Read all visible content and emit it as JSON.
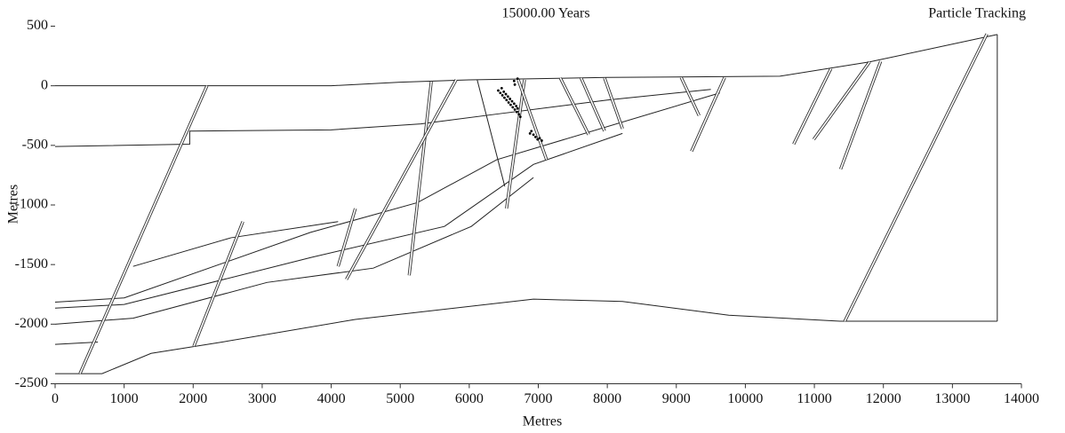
{
  "chart_data": {
    "type": "line",
    "title": "15000.00 Years",
    "annotation": "Particle Tracking",
    "x_label": "Metres",
    "y_label": "Metres",
    "xlim": [
      0,
      14000
    ],
    "ylim": [
      -2500,
      500
    ],
    "xticks": [
      0,
      1000,
      2000,
      3000,
      4000,
      5000,
      6000,
      7000,
      8000,
      9000,
      10000,
      11000,
      12000,
      13000,
      14000
    ],
    "yticks": [
      500,
      0,
      -500,
      -1000,
      -1500,
      -2000,
      -2500
    ],
    "grid": false,
    "series": [
      {
        "style": "layer",
        "color": "#222222",
        "x": [
          0,
          4000,
          5000,
          6000,
          8000,
          10500,
          11800,
          13650
        ],
        "values": [
          0,
          0,
          30,
          50,
          70,
          80,
          200,
          430
        ]
      },
      {
        "style": "layer",
        "color": "#222222",
        "x": [
          13650,
          13650
        ],
        "values": [
          430,
          -1975
        ]
      },
      {
        "style": "layer",
        "color": "#222222",
        "x": [
          0,
          680,
          1390,
          2420,
          4350,
          6930,
          8220,
          9760,
          11370,
          13650
        ],
        "values": [
          -2415,
          -2415,
          -2245,
          -2150,
          -1960,
          -1790,
          -1810,
          -1925,
          -1975,
          -1975
        ]
      },
      {
        "style": "layer",
        "color": "#222222",
        "x": [
          0,
          1950,
          1950,
          4000,
          5300,
          6500,
          8000,
          9500
        ],
        "values": [
          -510,
          -490,
          -380,
          -370,
          -320,
          -230,
          -120,
          -30
        ]
      },
      {
        "style": "layer",
        "color": "#222222",
        "x": [
          0,
          1000,
          3700,
          5250,
          6400,
          9630
        ],
        "values": [
          -1815,
          -1780,
          -1230,
          -980,
          -620,
          -60
        ]
      },
      {
        "style": "layer",
        "color": "#222222",
        "x": [
          0,
          1000,
          3710,
          5640,
          6930,
          8220
        ],
        "values": [
          -1865,
          -1835,
          -1440,
          -1180,
          -660,
          -400
        ]
      },
      {
        "style": "layer",
        "color": "#222222",
        "x": [
          0,
          1130,
          3070,
          4610,
          6030,
          6930
        ],
        "values": [
          -2000,
          -1950,
          -1650,
          -1530,
          -1180,
          -770
        ]
      },
      {
        "style": "layer",
        "color": "#222222",
        "x": [
          0,
          620
        ],
        "values": [
          -2170,
          -2150
        ]
      },
      {
        "style": "layer",
        "color": "#222222",
        "x": [
          1130,
          2550,
          4100
        ],
        "values": [
          -1515,
          -1275,
          -1140
        ]
      },
      {
        "style": "layer",
        "color": "#222222",
        "x": [
          6115,
          6515
        ],
        "values": [
          50,
          -845
        ]
      },
      {
        "style": "fault",
        "color": "#333333",
        "x": [
          2200,
          360
        ],
        "values": [
          0,
          -2415
        ]
      },
      {
        "style": "fault",
        "color": "#333333",
        "x": [
          2720,
          2010
        ],
        "values": [
          -1140,
          -2185
        ]
      },
      {
        "style": "fault",
        "color": "#333333",
        "x": [
          4350,
          4100
        ],
        "values": [
          -1030,
          -1515
        ]
      },
      {
        "style": "fault",
        "color": "#333333",
        "x": [
          5450,
          5130
        ],
        "values": [
          35,
          -1590
        ]
      },
      {
        "style": "fault",
        "color": "#333333",
        "x": [
          5810,
          4220
        ],
        "values": [
          50,
          -1625
        ]
      },
      {
        "style": "fault",
        "color": "#333333",
        "x": [
          6800,
          6540
        ],
        "values": [
          50,
          -1030
        ]
      },
      {
        "style": "fault",
        "color": "#333333",
        "x": [
          6710,
          7120
        ],
        "values": [
          50,
          -620
        ]
      },
      {
        "style": "fault",
        "color": "#333333",
        "x": [
          7320,
          7730
        ],
        "values": [
          65,
          -410
        ]
      },
      {
        "style": "fault",
        "color": "#333333",
        "x": [
          7620,
          7960
        ],
        "values": [
          65,
          -380
        ]
      },
      {
        "style": "fault",
        "color": "#333333",
        "x": [
          7960,
          8220
        ],
        "values": [
          65,
          -360
        ]
      },
      {
        "style": "fault",
        "color": "#333333",
        "x": [
          9070,
          9330
        ],
        "values": [
          70,
          -250
        ]
      },
      {
        "style": "fault",
        "color": "#333333",
        "x": [
          9700,
          9220
        ],
        "values": [
          70,
          -550
        ]
      },
      {
        "style": "fault",
        "color": "#333333",
        "x": [
          11240,
          10700
        ],
        "values": [
          145,
          -490
        ]
      },
      {
        "style": "fault",
        "color": "#333333",
        "x": [
          11800,
          10990
        ],
        "values": [
          200,
          -450
        ]
      },
      {
        "style": "fault",
        "color": "#333333",
        "x": [
          11960,
          11380
        ],
        "values": [
          205,
          -700
        ]
      },
      {
        "style": "fault",
        "color": "#333333",
        "x": [
          13500,
          11440
        ],
        "values": [
          435,
          -1975
        ]
      },
      {
        "style": "particles",
        "color": "#000000",
        "x": [
          6420,
          6450,
          6470,
          6480,
          6500,
          6510,
          6530,
          6540,
          6560,
          6570,
          6590,
          6600,
          6620,
          6630,
          6650,
          6660,
          6680,
          6690,
          6700,
          6720,
          6650,
          6660,
          6700,
          6740,
          6900,
          6930,
          6960,
          6990,
          7020,
          7050,
          6880
        ],
        "values": [
          -40,
          -60,
          -20,
          -80,
          -50,
          -100,
          -70,
          -120,
          -90,
          -140,
          -110,
          -160,
          -130,
          -180,
          -150,
          -200,
          -170,
          -220,
          -190,
          -240,
          40,
          10,
          60,
          -260,
          -380,
          -410,
          -430,
          -450,
          -440,
          -460,
          -400
        ]
      }
    ]
  }
}
